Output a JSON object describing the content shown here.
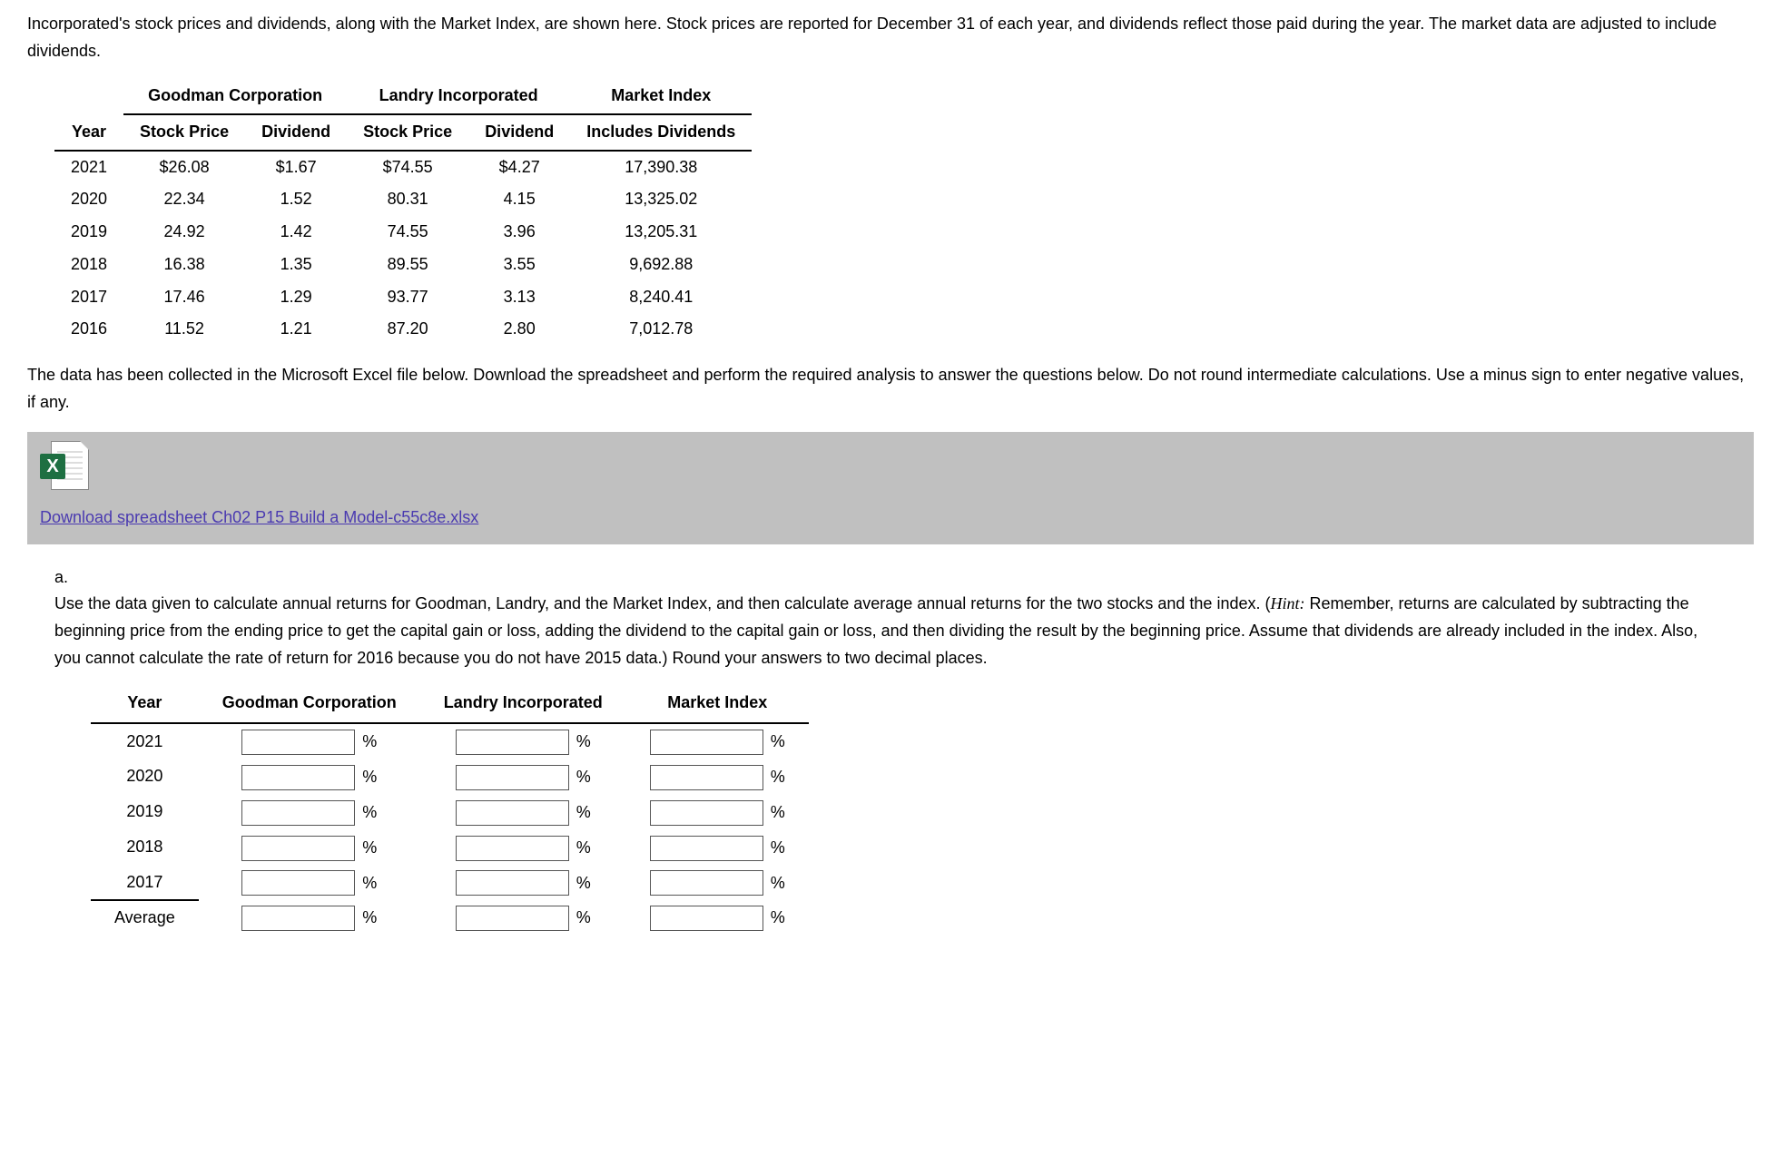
{
  "intro": "Incorporated's stock prices and dividends, along with the Market Index, are shown here. Stock prices are reported for December 31 of each year, and dividends reflect those paid during the year. The market data are adjusted to include dividends.",
  "table": {
    "group_headers": {
      "goodman": "Goodman Corporation",
      "landry": "Landry Incorporated",
      "market": "Market Index"
    },
    "col_headers": {
      "year": "Year",
      "goodman_price": "Stock Price",
      "goodman_div": "Dividend",
      "landry_price": "Stock Price",
      "landry_div": "Dividend",
      "market": "Includes Dividends"
    },
    "rows": [
      {
        "year": "2021",
        "gp": "$26.08",
        "gd": "$1.67",
        "lp": "$74.55",
        "ld": "$4.27",
        "mi": "17,390.38"
      },
      {
        "year": "2020",
        "gp": "22.34",
        "gd": "1.52",
        "lp": "80.31",
        "ld": "4.15",
        "mi": "13,325.02"
      },
      {
        "year": "2019",
        "gp": "24.92",
        "gd": "1.42",
        "lp": "74.55",
        "ld": "3.96",
        "mi": "13,205.31"
      },
      {
        "year": "2018",
        "gp": "16.38",
        "gd": "1.35",
        "lp": "89.55",
        "ld": "3.55",
        "mi": "9,692.88"
      },
      {
        "year": "2017",
        "gp": "17.46",
        "gd": "1.29",
        "lp": "93.77",
        "ld": "3.13",
        "mi": "8,240.41"
      },
      {
        "year": "2016",
        "gp": "11.52",
        "gd": "1.21",
        "lp": "87.20",
        "ld": "2.80",
        "mi": "7,012.78"
      }
    ]
  },
  "instructions": "The data has been collected in the Microsoft Excel file below. Download the spreadsheet and perform the required analysis to answer the questions below. Do not round intermediate calculations. Use a minus sign to enter negative values, if any.",
  "excel_badge": "X",
  "download_link_text": "Download spreadsheet Ch02 P15 Build a Model-c55c8e.xlsx",
  "question": {
    "letter": "a.",
    "pre": "Use the data given to calculate annual returns for Goodman, Landry, and the Market Index, and then calculate average annual returns for the two stocks and the index. (",
    "hint_label": "Hint:",
    "post": " Remember, returns are calculated by subtracting the beginning price from the ending price to get the capital gain or loss, adding the dividend to the capital gain or loss, and then dividing the result by the beginning price. Assume that dividends are already included in the index. Also, you cannot calculate the rate of return for 2016 because you do not have 2015 data.) Round your answers to two decimal places."
  },
  "answer_table": {
    "headers": {
      "year": "Year",
      "goodman": "Goodman Corporation",
      "landry": "Landry Incorporated",
      "market": "Market Index"
    },
    "years": [
      "2021",
      "2020",
      "2019",
      "2018",
      "2017"
    ],
    "average_label": "Average",
    "unit": "%"
  }
}
